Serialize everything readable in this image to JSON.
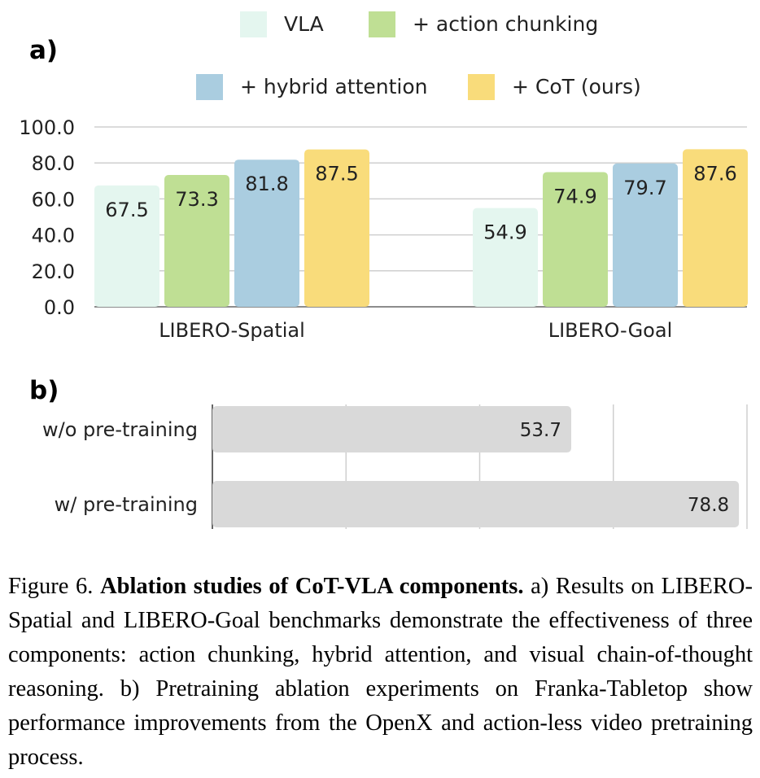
{
  "chart_data": [
    {
      "panel": "a)",
      "type": "bar",
      "categories": [
        "LIBERO-Spatial",
        "LIBERO-Goal"
      ],
      "series": [
        {
          "name": "VLA",
          "color": "#e4f6ef",
          "values": [
            67.5,
            54.9
          ],
          "labels": [
            "67.5",
            "54.9"
          ]
        },
        {
          "name": "+ action chunking",
          "color": "#bfdf94",
          "values": [
            73.3,
            74.9
          ],
          "labels": [
            "73.3",
            "74.9"
          ]
        },
        {
          "name": "+ hybrid attention",
          "color": "#aacde0",
          "values": [
            81.8,
            79.7
          ],
          "labels": [
            "81.8",
            "79.7"
          ]
        },
        {
          "name": "+ CoT (ours)",
          "color": "#f9dc7b",
          "values": [
            87.5,
            87.6
          ],
          "labels": [
            "87.5",
            "87.6"
          ]
        }
      ],
      "ylim": [
        0,
        100
      ],
      "yticks": [
        "0.0",
        "20.0",
        "40.0",
        "60.0",
        "80.0",
        "100.0"
      ],
      "legend": "top",
      "grid": true
    },
    {
      "panel": "b)",
      "type": "bar",
      "orientation": "horizontal",
      "categories": [
        "w/o pre-training",
        "w/ pre-training"
      ],
      "values": [
        53.7,
        78.8
      ],
      "labels": [
        "53.7",
        "78.8"
      ],
      "color": "#d9d9d9",
      "xlim": [
        0,
        80
      ],
      "grid": true
    }
  ],
  "caption": {
    "label": "Figure 6.",
    "title": "Ablation studies of CoT-VLA components.",
    "body": "a) Results on LIBERO-Spatial and LIBERO-Goal benchmarks demonstrate the effectiveness of three components: action chunking, hybrid attention, and visual chain-of-thought reasoning. b) Pretraining ablation experiments on Franka-Tabletop show performance improvements from the OpenX and action-less video pretraining process."
  }
}
